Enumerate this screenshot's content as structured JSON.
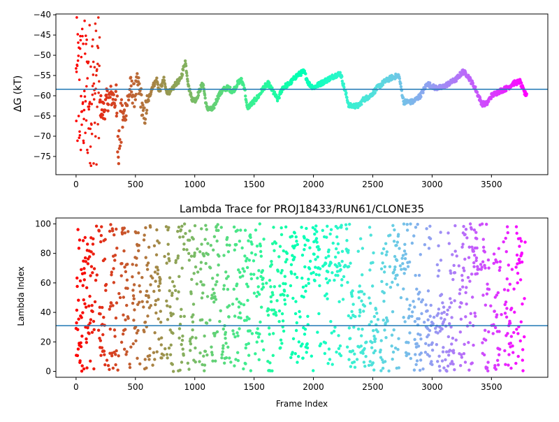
{
  "chart_data": [
    {
      "type": "scatter",
      "title": "",
      "xlabel": "",
      "ylabel": "ΔG (kT)",
      "xlim": [
        -170,
        3975
      ],
      "ylim": [
        -79.5,
        -39.8
      ],
      "xticks": [
        0,
        500,
        1000,
        1500,
        2000,
        2500,
        3000,
        3500
      ],
      "yticks": [
        -75,
        -70,
        -65,
        -60,
        -55,
        -50,
        -45,
        -40
      ],
      "hline": -58.4,
      "colormap": "rainbow (red at frame 0 → violet at last frame)",
      "n_frames": 3800,
      "trace_keypoints": [
        [
          200,
          -62
        ],
        [
          230,
          -64
        ],
        [
          260,
          -61
        ],
        [
          300,
          -60
        ],
        [
          340,
          -62
        ],
        [
          360,
          -72
        ],
        [
          380,
          -68
        ],
        [
          420,
          -63
        ],
        [
          460,
          -58
        ],
        [
          490,
          -60
        ],
        [
          520,
          -57
        ],
        [
          550,
          -61
        ],
        [
          570,
          -66
        ],
        [
          600,
          -62
        ],
        [
          640,
          -58
        ],
        [
          680,
          -56
        ],
        [
          700,
          -59
        ],
        [
          740,
          -56
        ],
        [
          760,
          -59
        ],
        [
          800,
          -59
        ],
        [
          840,
          -57
        ],
        [
          880,
          -56
        ],
        [
          920,
          -51.5
        ],
        [
          950,
          -58
        ],
        [
          980,
          -61
        ],
        [
          1010,
          -61
        ],
        [
          1050,
          -58
        ],
        [
          1070,
          -57
        ],
        [
          1100,
          -63
        ],
        [
          1150,
          -63.5
        ],
        [
          1200,
          -60
        ],
        [
          1240,
          -58.5
        ],
        [
          1280,
          -58
        ],
        [
          1320,
          -59
        ],
        [
          1360,
          -57
        ],
        [
          1390,
          -56
        ],
        [
          1420,
          -58
        ],
        [
          1440,
          -63
        ],
        [
          1480,
          -62
        ],
        [
          1540,
          -60
        ],
        [
          1580,
          -58
        ],
        [
          1620,
          -57
        ],
        [
          1660,
          -59
        ],
        [
          1700,
          -61
        ],
        [
          1740,
          -58
        ],
        [
          1800,
          -57
        ],
        [
          1860,
          -55
        ],
        [
          1920,
          -54
        ],
        [
          1960,
          -57
        ],
        [
          2000,
          -58
        ],
        [
          2060,
          -57
        ],
        [
          2120,
          -56
        ],
        [
          2180,
          -55
        ],
        [
          2230,
          -54.5
        ],
        [
          2250,
          -57
        ],
        [
          2300,
          -62.5
        ],
        [
          2380,
          -62.5
        ],
        [
          2420,
          -61
        ],
        [
          2480,
          -60
        ],
        [
          2540,
          -58
        ],
        [
          2600,
          -56.5
        ],
        [
          2660,
          -55.5
        ],
        [
          2720,
          -55
        ],
        [
          2760,
          -61.5
        ],
        [
          2840,
          -61.5
        ],
        [
          2900,
          -60
        ],
        [
          2960,
          -57
        ],
        [
          3020,
          -58
        ],
        [
          3080,
          -58
        ],
        [
          3140,
          -57
        ],
        [
          3200,
          -56
        ],
        [
          3260,
          -54
        ],
        [
          3300,
          -55
        ],
        [
          3360,
          -58
        ],
        [
          3420,
          -62
        ],
        [
          3460,
          -62
        ],
        [
          3500,
          -60
        ],
        [
          3560,
          -59
        ],
        [
          3640,
          -58
        ],
        [
          3680,
          -57
        ],
        [
          3740,
          -56.5
        ],
        [
          3780,
          -59.5
        ]
      ],
      "early_scatter": {
        "frames": [
          0,
          200
        ],
        "range": [
          -77.5,
          -40
        ],
        "note": "red/orange/yellow/green points at left"
      }
    },
    {
      "type": "scatter",
      "title": "Lambda Trace for PROJ18433/RUN61/CLONE35",
      "xlabel": "Frame Index",
      "ylabel": "Lambda Index",
      "xlim": [
        -170,
        3975
      ],
      "ylim": [
        -4,
        104
      ],
      "xticks": [
        0,
        500,
        1000,
        1500,
        2000,
        2500,
        3000,
        3500
      ],
      "yticks": [
        0,
        20,
        40,
        60,
        80,
        100
      ],
      "hline": 31,
      "colormap": "rainbow (red at frame 0 → violet at last frame)",
      "n_frames": 3800,
      "note": "points fill 0–100 in vertical stripes; dense high band near 2000–2300, 2700, 3300–3400, 3750"
    }
  ]
}
